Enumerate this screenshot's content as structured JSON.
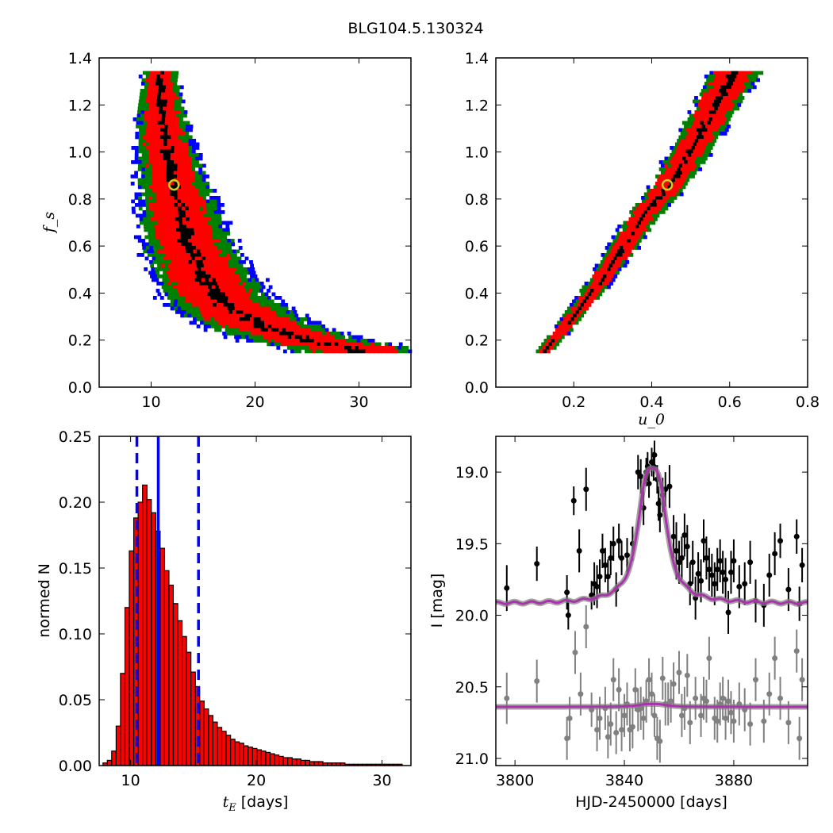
{
  "figure": {
    "title": "BLG104.5.130324"
  },
  "colors": {
    "level1": "#000000",
    "level2": "#ff0000",
    "level3": "#008000",
    "level4": "#0000ff",
    "marker": "#cccc22",
    "model": "#aa33aa",
    "second": "#808080"
  },
  "chart_data": [
    {
      "type": "heatmap",
      "panel": "fs-vs-tE",
      "xlabel": "",
      "ylabel": "f_s",
      "xlim": [
        5,
        35
      ],
      "ylim": [
        0.0,
        1.4
      ],
      "xticks": [
        "10",
        "20",
        "30"
      ],
      "yticks": [
        "0.0",
        "0.2",
        "0.4",
        "0.6",
        "0.8",
        "1.0",
        "1.2",
        "1.4"
      ],
      "contour_levels": [
        "black",
        "red",
        "green",
        "blue"
      ],
      "ridge": {
        "fs": [
          0.17,
          0.2,
          0.25,
          0.3,
          0.35,
          0.4,
          0.5,
          0.6,
          0.7,
          0.8,
          0.9,
          1.0,
          1.1,
          1.2,
          1.35
        ],
        "tE": [
          29.5,
          25.5,
          21.5,
          19.0,
          17.2,
          16.0,
          14.6,
          13.6,
          12.9,
          12.3,
          11.8,
          11.4,
          11.0,
          10.8,
          10.6
        ]
      },
      "best_fit": {
        "tE": 12.2,
        "fs": 0.86
      }
    },
    {
      "type": "heatmap",
      "panel": "fs-vs-u0",
      "xlabel": "u_0",
      "ylabel": "",
      "xlim": [
        0.0,
        0.8
      ],
      "ylim": [
        0.0,
        1.4
      ],
      "xticks": [
        "0.2",
        "0.4",
        "0.6",
        "0.8"
      ],
      "yticks": [
        "0.0",
        "0.2",
        "0.4",
        "0.6",
        "0.8",
        "1.0",
        "1.2",
        "1.4"
      ],
      "ridge": {
        "fs": [
          0.16,
          0.3,
          0.45,
          0.6,
          0.75,
          0.86,
          1.0,
          1.2,
          1.35
        ],
        "u0": [
          0.12,
          0.19,
          0.26,
          0.32,
          0.38,
          0.44,
          0.49,
          0.56,
          0.61
        ]
      },
      "best_fit": {
        "u0": 0.44,
        "fs": 0.86
      }
    },
    {
      "type": "bar",
      "panel": "tE-histogram",
      "xlabel": "days",
      "ylabel": "normed N",
      "xlim": [
        7.5,
        32.3
      ],
      "ylim": [
        0.0,
        0.25
      ],
      "xticks": [
        "10",
        "20",
        "30"
      ],
      "yticks": [
        "0.00",
        "0.05",
        "0.10",
        "0.15",
        "0.20",
        "0.25"
      ],
      "bin_start": 7.8,
      "bin_width": 0.35,
      "values": [
        0.002,
        0.004,
        0.011,
        0.03,
        0.07,
        0.12,
        0.163,
        0.188,
        0.2,
        0.213,
        0.202,
        0.192,
        0.178,
        0.165,
        0.148,
        0.137,
        0.123,
        0.11,
        0.098,
        0.086,
        0.071,
        0.06,
        0.049,
        0.043,
        0.038,
        0.033,
        0.029,
        0.026,
        0.023,
        0.02,
        0.018,
        0.017,
        0.015,
        0.014,
        0.013,
        0.012,
        0.011,
        0.01,
        0.009,
        0.008,
        0.007,
        0.006,
        0.006,
        0.005,
        0.005,
        0.004,
        0.004,
        0.003,
        0.003,
        0.003,
        0.002,
        0.002,
        0.002,
        0.002,
        0.002,
        0.001,
        0.001,
        0.001,
        0.001,
        0.001,
        0.001,
        0.001,
        0.001,
        0.001,
        0.001,
        0.001,
        0.001,
        0.001
      ],
      "vlines": {
        "median": 12.2,
        "lower": 10.5,
        "upper": 15.4
      }
    },
    {
      "type": "scatter",
      "panel": "lightcurve",
      "xlabel": "HJD-2450000 [days]",
      "ylabel": "I [mag]",
      "xlim": [
        3793,
        3907
      ],
      "ylim": [
        21.05,
        18.75
      ],
      "xticks": [
        "3800",
        "3840",
        "3880"
      ],
      "yticks": [
        "19.0",
        "19.5",
        "20.0",
        "20.5",
        "21.0"
      ],
      "model": {
        "t0": 3850.2,
        "peak": 18.98,
        "base": 19.92,
        "width": 3.4
      },
      "model_second": {
        "base": 20.64
      },
      "series": [
        {
          "color": "black",
          "points": [
            [
              3797,
              19.81,
              0.16
            ],
            [
              3808,
              19.64,
              0.12
            ],
            [
              3819,
              19.84,
              0.12
            ],
            [
              3819.5,
              20.0,
              0.1
            ],
            [
              3821.5,
              19.2,
              0.1
            ],
            [
              3823.5,
              19.55,
              0.15
            ],
            [
              3826,
              19.12,
              0.15
            ],
            [
              3828,
              19.86,
              0.1
            ],
            [
              3829,
              19.78,
              0.15
            ],
            [
              3830,
              19.8,
              0.15
            ],
            [
              3831,
              19.73,
              0.12
            ],
            [
              3832,
              19.55,
              0.12
            ],
            [
              3833,
              19.65,
              0.12
            ],
            [
              3834,
              19.73,
              0.12
            ],
            [
              3835,
              19.6,
              0.12
            ],
            [
              3836,
              19.5,
              0.12
            ],
            [
              3837,
              19.82,
              0.12
            ],
            [
              3838,
              19.48,
              0.12
            ],
            [
              3839,
              19.6,
              0.12
            ],
            [
              3841,
              19.58,
              0.12
            ],
            [
              3843,
              19.5,
              0.12
            ],
            [
              3845,
              19.0,
              0.12
            ],
            [
              3846,
              19.03,
              0.12
            ],
            [
              3847,
              19.25,
              0.12
            ],
            [
              3848,
              19.0,
              0.1
            ],
            [
              3848.5,
              18.96,
              0.1
            ],
            [
              3849,
              19.08,
              0.1
            ],
            [
              3850,
              18.93,
              0.1
            ],
            [
              3850.7,
              18.96,
              0.1
            ],
            [
              3851,
              18.88,
              0.1
            ],
            [
              3852,
              19.05,
              0.1
            ],
            [
              3852.5,
              19.22,
              0.12
            ],
            [
              3853,
              19.3,
              0.12
            ],
            [
              3854,
              19.16,
              0.12
            ],
            [
              3855,
              19.12,
              0.12
            ],
            [
              3856.5,
              19.1,
              0.15
            ],
            [
              3858,
              19.45,
              0.15
            ],
            [
              3859,
              19.55,
              0.2
            ],
            [
              3860,
              19.63,
              0.15
            ],
            [
              3861,
              19.6,
              0.15
            ],
            [
              3862,
              19.44,
              0.15
            ],
            [
              3863,
              19.52,
              0.15
            ],
            [
              3864,
              19.78,
              0.15
            ],
            [
              3865,
              19.63,
              0.15
            ],
            [
              3866,
              19.88,
              0.15
            ],
            [
              3867,
              19.71,
              0.15
            ],
            [
              3868,
              19.76,
              0.15
            ],
            [
              3869,
              19.48,
              0.15
            ],
            [
              3870,
              19.6,
              0.15
            ],
            [
              3871,
              19.68,
              0.15
            ],
            [
              3872,
              19.72,
              0.15
            ],
            [
              3873,
              19.78,
              0.15
            ],
            [
              3874,
              19.68,
              0.15
            ],
            [
              3875,
              19.62,
              0.15
            ],
            [
              3876,
              19.7,
              0.15
            ],
            [
              3877,
              19.75,
              0.15
            ],
            [
              3878,
              19.98,
              0.15
            ],
            [
              3879,
              19.7,
              0.15
            ],
            [
              3880,
              19.62,
              0.15
            ],
            [
              3882,
              19.8,
              0.15
            ],
            [
              3884,
              19.78,
              0.15
            ],
            [
              3886,
              19.63,
              0.15
            ],
            [
              3888,
              19.9,
              0.15
            ],
            [
              3891,
              19.93,
              0.15
            ],
            [
              3893,
              19.72,
              0.15
            ],
            [
              3895,
              19.57,
              0.15
            ],
            [
              3897,
              19.48,
              0.12
            ],
            [
              3900,
              19.82,
              0.15
            ],
            [
              3903,
              19.45,
              0.12
            ],
            [
              3904,
              19.92,
              0.12
            ],
            [
              3905,
              19.65,
              0.12
            ]
          ]
        },
        {
          "color": "gray",
          "points": [
            [
              3797,
              20.58,
              0.18
            ],
            [
              3808,
              20.46,
              0.15
            ],
            [
              3819,
              20.86,
              0.15
            ],
            [
              3820,
              20.72,
              0.15
            ],
            [
              3822,
              20.26,
              0.15
            ],
            [
              3824,
              20.55,
              0.15
            ],
            [
              3826,
              20.08,
              0.15
            ],
            [
              3828,
              20.66,
              0.12
            ],
            [
              3830,
              20.8,
              0.15
            ],
            [
              3831,
              20.72,
              0.15
            ],
            [
              3833,
              20.65,
              0.15
            ],
            [
              3834,
              20.85,
              0.15
            ],
            [
              3835,
              20.76,
              0.15
            ],
            [
              3836,
              20.45,
              0.15
            ],
            [
              3837,
              20.82,
              0.15
            ],
            [
              3838,
              20.52,
              0.15
            ],
            [
              3839,
              20.8,
              0.15
            ],
            [
              3840,
              20.7,
              0.15
            ],
            [
              3841,
              20.62,
              0.15
            ],
            [
              3842,
              20.8,
              0.15
            ],
            [
              3843,
              20.78,
              0.15
            ],
            [
              3844,
              20.52,
              0.15
            ],
            [
              3845,
              20.66,
              0.15
            ],
            [
              3846,
              20.65,
              0.15
            ],
            [
              3847,
              20.72,
              0.15
            ],
            [
              3848,
              20.6,
              0.15
            ],
            [
              3849,
              20.45,
              0.15
            ],
            [
              3850,
              20.55,
              0.15
            ],
            [
              3851,
              20.7,
              0.15
            ],
            [
              3852,
              20.86,
              0.15
            ],
            [
              3853,
              20.88,
              0.15
            ],
            [
              3854,
              20.44,
              0.15
            ],
            [
              3855,
              20.62,
              0.15
            ],
            [
              3856,
              20.62,
              0.15
            ],
            [
              3857,
              20.6,
              0.15
            ],
            [
              3858,
              20.48,
              0.15
            ],
            [
              3860,
              20.4,
              0.15
            ],
            [
              3861,
              20.7,
              0.15
            ],
            [
              3862,
              20.65,
              0.15
            ],
            [
              3863,
              20.42,
              0.15
            ],
            [
              3864,
              20.75,
              0.15
            ],
            [
              3866,
              20.58,
              0.15
            ],
            [
              3868,
              20.7,
              0.15
            ],
            [
              3869,
              20.58,
              0.15
            ],
            [
              3870,
              20.6,
              0.15
            ],
            [
              3871,
              20.3,
              0.15
            ],
            [
              3873,
              20.72,
              0.15
            ],
            [
              3874,
              20.74,
              0.15
            ],
            [
              3875,
              20.62,
              0.15
            ],
            [
              3876,
              20.58,
              0.15
            ],
            [
              3877,
              20.72,
              0.15
            ],
            [
              3878,
              20.6,
              0.15
            ],
            [
              3879,
              20.68,
              0.15
            ],
            [
              3880,
              20.74,
              0.15
            ],
            [
              3882,
              20.62,
              0.15
            ],
            [
              3884,
              20.66,
              0.15
            ],
            [
              3886,
              20.76,
              0.15
            ],
            [
              3888,
              20.45,
              0.15
            ],
            [
              3891,
              20.74,
              0.15
            ],
            [
              3893,
              20.55,
              0.15
            ],
            [
              3895,
              20.3,
              0.15
            ],
            [
              3897,
              20.58,
              0.15
            ],
            [
              3900,
              20.75,
              0.15
            ],
            [
              3903,
              20.25,
              0.15
            ],
            [
              3904,
              20.86,
              0.15
            ],
            [
              3905,
              20.45,
              0.15
            ]
          ]
        }
      ]
    }
  ]
}
